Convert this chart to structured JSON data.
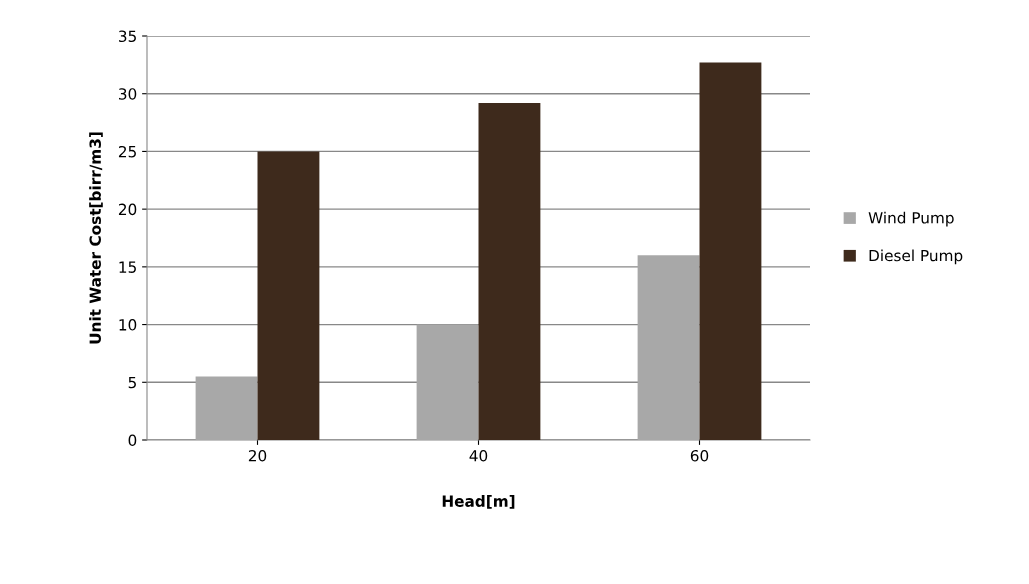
{
  "chart_data": {
    "type": "bar",
    "xlabel": "Head[m]",
    "ylabel": "Unit Water Cost[birr/m3]",
    "categories": [
      "20",
      "40",
      "60"
    ],
    "series": [
      {
        "name": "Wind Pump",
        "color": "#a8a8a8",
        "values": [
          5.5,
          10,
          16
        ]
      },
      {
        "name": "Diesel Pump",
        "color": "#3e2a1c",
        "values": [
          25,
          29.2,
          32.7
        ]
      }
    ],
    "ylim": [
      0,
      35
    ],
    "yticks": [
      0,
      5,
      10,
      15,
      20,
      25,
      30,
      35
    ],
    "grid": "y",
    "legend": "right"
  }
}
